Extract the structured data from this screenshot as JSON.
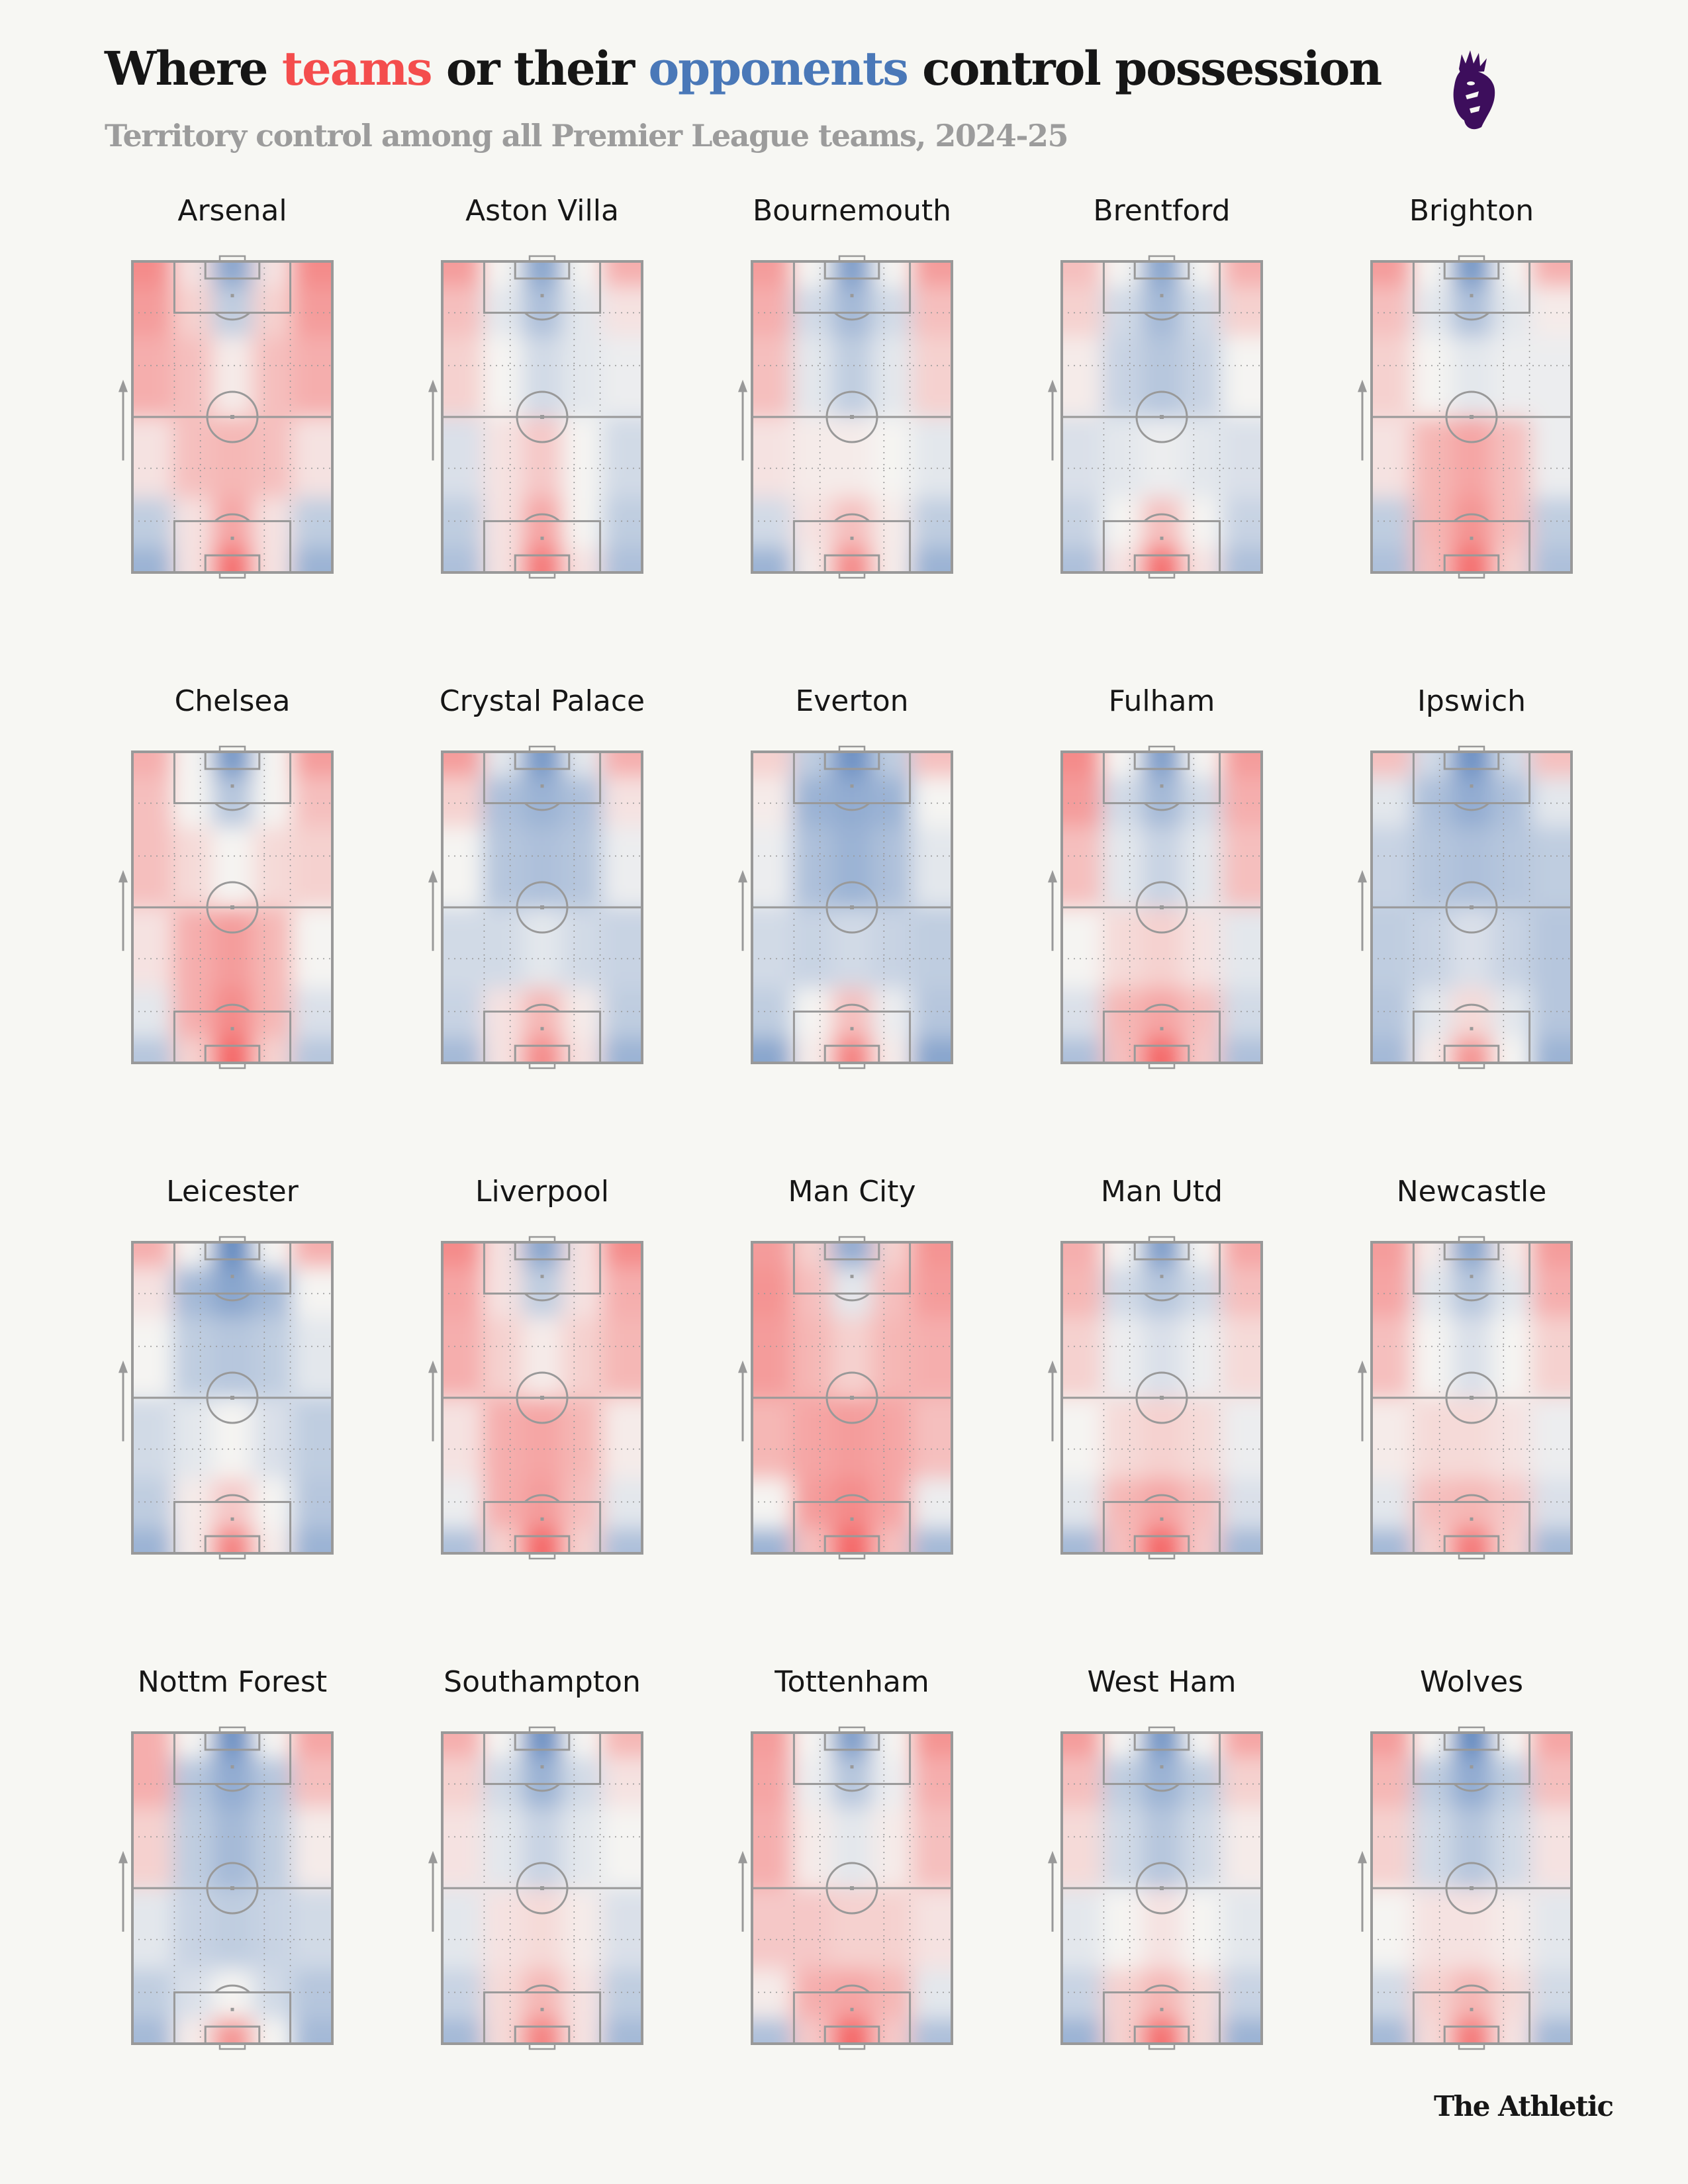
{
  "title": {
    "part1": "Where ",
    "teams": "teams",
    "part2": " or their ",
    "opponents": "opponents",
    "part3": " control possession"
  },
  "subtitle": "Territory control among all Premier League teams, 2024-25",
  "footer": "The Athletic",
  "logo": {
    "icon": "premier-league-lion-logo",
    "color": "#3d0e5c"
  },
  "colors": {
    "team": "#f44d4d",
    "opponent": "#4a78b8",
    "neutral": "#f5f4f2",
    "lines": "#999999"
  },
  "chart_data": {
    "type": "heatmap",
    "description_scale": "positive = team controls (red), negative = opponents control (blue)",
    "value_range": [
      -1,
      1
    ],
    "grid_columns": [
      "left wing",
      "left half-space",
      "centre",
      "right half-space",
      "right wing"
    ],
    "grid_rows": [
      "opponent six-yard area",
      "opponent penalty area",
      "attacking half",
      "defensive half",
      "own penalty-area approach",
      "own six-yard area"
    ],
    "attack_direction": "up",
    "teams": [
      {
        "name": "Arsenal",
        "grid": [
          [
            0.6,
            0.1,
            -0.6,
            0.1,
            0.6
          ],
          [
            0.5,
            0.2,
            -0.3,
            0.2,
            0.5
          ],
          [
            0.4,
            0.3,
            0.05,
            0.3,
            0.4
          ],
          [
            0.1,
            0.3,
            0.35,
            0.3,
            0.1
          ],
          [
            -0.3,
            0.1,
            0.45,
            0.1,
            -0.3
          ],
          [
            -0.5,
            0.1,
            0.75,
            0.1,
            -0.5
          ]
        ]
      },
      {
        "name": "Aston Villa",
        "grid": [
          [
            0.5,
            0,
            -0.6,
            0,
            0.4
          ],
          [
            0.3,
            -0.1,
            -0.4,
            -0.1,
            0.1
          ],
          [
            0.2,
            0,
            -0.2,
            -0.1,
            -0.05
          ],
          [
            -0.15,
            0.1,
            0.25,
            0,
            -0.2
          ],
          [
            -0.3,
            0.1,
            0.45,
            0,
            -0.3
          ],
          [
            -0.4,
            0.1,
            0.7,
            0.1,
            -0.4
          ]
        ]
      },
      {
        "name": "Bournemouth",
        "grid": [
          [
            0.5,
            0,
            -0.65,
            0,
            0.5
          ],
          [
            0.4,
            -0.2,
            -0.45,
            -0.2,
            0.3
          ],
          [
            0.3,
            -0.1,
            -0.3,
            -0.1,
            0.2
          ],
          [
            0.1,
            0.05,
            0.05,
            0,
            -0.1
          ],
          [
            -0.2,
            0.1,
            0.3,
            0.05,
            -0.3
          ],
          [
            -0.5,
            0.05,
            0.6,
            0.05,
            -0.5
          ]
        ]
      },
      {
        "name": "Brentford",
        "grid": [
          [
            0.3,
            0,
            -0.6,
            0,
            0.4
          ],
          [
            0.2,
            -0.2,
            -0.45,
            -0.2,
            0.2
          ],
          [
            0.05,
            -0.25,
            -0.35,
            -0.25,
            0
          ],
          [
            -0.15,
            -0.1,
            -0.05,
            -0.1,
            -0.15
          ],
          [
            -0.25,
            0,
            0.3,
            0,
            -0.25
          ],
          [
            -0.4,
            0.1,
            0.75,
            0.1,
            -0.4
          ]
        ]
      },
      {
        "name": "Brighton",
        "grid": [
          [
            0.5,
            0,
            -0.7,
            0,
            0.4
          ],
          [
            0.3,
            -0.1,
            -0.4,
            -0.1,
            0.05
          ],
          [
            0.2,
            0,
            -0.1,
            -0.05,
            -0.05
          ],
          [
            0.1,
            0.35,
            0.45,
            0.3,
            -0.05
          ],
          [
            -0.3,
            0.35,
            0.55,
            0.3,
            -0.3
          ],
          [
            -0.4,
            0.3,
            0.75,
            0.2,
            -0.4
          ]
        ]
      },
      {
        "name": "Chelsea",
        "grid": [
          [
            0.4,
            0,
            -0.7,
            0,
            0.5
          ],
          [
            0.3,
            0,
            -0.35,
            0,
            0.3
          ],
          [
            0.3,
            0.15,
            0,
            0.15,
            0.2
          ],
          [
            0.1,
            0.4,
            0.5,
            0.35,
            0
          ],
          [
            -0.1,
            0.4,
            0.6,
            0.35,
            -0.15
          ],
          [
            -0.35,
            0.2,
            0.8,
            0.2,
            -0.35
          ]
        ]
      },
      {
        "name": "Crystal Palace",
        "grid": [
          [
            0.5,
            -0.1,
            -0.7,
            -0.1,
            0.4
          ],
          [
            0.2,
            -0.4,
            -0.5,
            -0.4,
            0.1
          ],
          [
            0,
            -0.35,
            -0.4,
            -0.35,
            -0.05
          ],
          [
            -0.2,
            -0.2,
            -0.1,
            -0.2,
            -0.25
          ],
          [
            -0.25,
            0.1,
            0.35,
            0.05,
            -0.3
          ],
          [
            -0.45,
            0.1,
            0.6,
            0.1,
            -0.5
          ]
        ]
      },
      {
        "name": "Everton",
        "grid": [
          [
            0.2,
            -0.3,
            -0.75,
            -0.3,
            0.3
          ],
          [
            0.05,
            -0.5,
            -0.55,
            -0.5,
            0
          ],
          [
            -0.05,
            -0.4,
            -0.5,
            -0.4,
            -0.1
          ],
          [
            -0.2,
            -0.25,
            -0.2,
            -0.25,
            -0.3
          ],
          [
            -0.3,
            0,
            0.3,
            -0.05,
            -0.35
          ],
          [
            -0.6,
            0.05,
            0.65,
            0.05,
            -0.6
          ]
        ]
      },
      {
        "name": "Fulham",
        "grid": [
          [
            0.6,
            0,
            -0.65,
            0,
            0.5
          ],
          [
            0.5,
            -0.2,
            -0.45,
            -0.2,
            0.4
          ],
          [
            0.3,
            -0.1,
            -0.25,
            -0.1,
            0.3
          ],
          [
            0,
            0.15,
            0.2,
            0.1,
            -0.1
          ],
          [
            -0.15,
            0.35,
            0.45,
            0.3,
            -0.2
          ],
          [
            -0.4,
            0.3,
            0.8,
            0.25,
            -0.4
          ]
        ]
      },
      {
        "name": "Ipswich",
        "grid": [
          [
            0.3,
            -0.2,
            -0.75,
            -0.2,
            0.3
          ],
          [
            -0.1,
            -0.4,
            -0.55,
            -0.4,
            -0.1
          ],
          [
            -0.25,
            -0.35,
            -0.4,
            -0.35,
            -0.3
          ],
          [
            -0.3,
            -0.25,
            -0.15,
            -0.25,
            -0.35
          ],
          [
            -0.35,
            -0.1,
            0.15,
            -0.1,
            -0.35
          ],
          [
            -0.45,
            0.05,
            0.55,
            0,
            -0.5
          ]
        ]
      },
      {
        "name": "Leicester",
        "grid": [
          [
            0.4,
            0,
            -0.8,
            0,
            0.4
          ],
          [
            0.1,
            -0.45,
            -0.6,
            -0.45,
            0
          ],
          [
            0,
            -0.3,
            -0.35,
            -0.3,
            -0.1
          ],
          [
            -0.2,
            -0.1,
            0,
            -0.15,
            -0.3
          ],
          [
            -0.3,
            0.05,
            0.25,
            0,
            -0.35
          ],
          [
            -0.5,
            0.05,
            0.65,
            0.05,
            -0.5
          ]
        ]
      },
      {
        "name": "Liverpool",
        "grid": [
          [
            0.6,
            0.1,
            -0.6,
            0.1,
            0.6
          ],
          [
            0.45,
            0.1,
            -0.3,
            0.1,
            0.4
          ],
          [
            0.4,
            0.2,
            0.05,
            0.2,
            0.35
          ],
          [
            0.1,
            0.4,
            0.45,
            0.35,
            0.05
          ],
          [
            -0.05,
            0.4,
            0.5,
            0.3,
            -0.1
          ],
          [
            -0.4,
            0.2,
            0.8,
            0.2,
            -0.4
          ]
        ]
      },
      {
        "name": "Man City",
        "grid": [
          [
            0.5,
            0.2,
            -0.55,
            0.2,
            0.55
          ],
          [
            0.55,
            0.3,
            -0.1,
            0.3,
            0.5
          ],
          [
            0.5,
            0.35,
            0.2,
            0.35,
            0.4
          ],
          [
            0.35,
            0.45,
            0.5,
            0.45,
            0.3
          ],
          [
            0,
            0.5,
            0.6,
            0.45,
            -0.05
          ],
          [
            -0.5,
            0.3,
            0.8,
            0.3,
            -0.45
          ]
        ]
      },
      {
        "name": "Man Utd",
        "grid": [
          [
            0.4,
            0,
            -0.65,
            0,
            0.45
          ],
          [
            0.35,
            -0.2,
            -0.35,
            -0.2,
            0.3
          ],
          [
            0.2,
            -0.05,
            -0.15,
            -0.05,
            0.15
          ],
          [
            0,
            0.15,
            0.2,
            0.15,
            -0.05
          ],
          [
            -0.1,
            0.35,
            0.45,
            0.3,
            -0.15
          ],
          [
            -0.45,
            0.3,
            0.8,
            0.25,
            -0.45
          ]
        ]
      },
      {
        "name": "Newcastle",
        "grid": [
          [
            0.5,
            0.05,
            -0.6,
            0.05,
            0.5
          ],
          [
            0.45,
            -0.1,
            -0.35,
            -0.1,
            0.4
          ],
          [
            0.3,
            0,
            -0.15,
            0,
            0.2
          ],
          [
            0.05,
            0.15,
            0.15,
            0.1,
            -0.05
          ],
          [
            -0.1,
            0.3,
            0.35,
            0.25,
            -0.15
          ],
          [
            -0.45,
            0.2,
            0.7,
            0.2,
            -0.45
          ]
        ]
      },
      {
        "name": "Nottm Forest",
        "grid": [
          [
            0.4,
            0,
            -0.75,
            0,
            0.45
          ],
          [
            0.4,
            -0.35,
            -0.55,
            -0.35,
            0.3
          ],
          [
            0.2,
            -0.3,
            -0.45,
            -0.3,
            0.05
          ],
          [
            -0.1,
            -0.25,
            -0.3,
            -0.25,
            -0.2
          ],
          [
            -0.3,
            -0.15,
            0,
            -0.2,
            -0.35
          ],
          [
            -0.45,
            0.05,
            0.55,
            0,
            -0.45
          ]
        ]
      },
      {
        "name": "Southampton",
        "grid": [
          [
            0.4,
            0,
            -0.75,
            0,
            0.35
          ],
          [
            0.2,
            -0.2,
            -0.5,
            -0.2,
            0.1
          ],
          [
            0.1,
            -0.1,
            -0.25,
            -0.1,
            0
          ],
          [
            -0.1,
            0.1,
            0.15,
            0.05,
            -0.15
          ],
          [
            -0.25,
            0.15,
            0.35,
            0.1,
            -0.3
          ],
          [
            -0.45,
            0.15,
            0.65,
            0.1,
            -0.45
          ]
        ]
      },
      {
        "name": "Tottenham",
        "grid": [
          [
            0.5,
            0,
            -0.65,
            0,
            0.55
          ],
          [
            0.45,
            -0.05,
            -0.35,
            -0.05,
            0.4
          ],
          [
            0.4,
            0.05,
            -0.1,
            0.05,
            0.3
          ],
          [
            0.25,
            0.25,
            0.2,
            0.2,
            0.1
          ],
          [
            0.05,
            0.4,
            0.45,
            0.35,
            -0.1
          ],
          [
            -0.4,
            0.25,
            0.8,
            0.25,
            -0.4
          ]
        ]
      },
      {
        "name": "West Ham",
        "grid": [
          [
            0.5,
            0,
            -0.7,
            0,
            0.45
          ],
          [
            0.3,
            -0.3,
            -0.5,
            -0.3,
            0.2
          ],
          [
            0.15,
            -0.2,
            -0.35,
            -0.2,
            0.05
          ],
          [
            -0.1,
            0,
            0.1,
            0,
            -0.1
          ],
          [
            -0.25,
            0.2,
            0.35,
            0.15,
            -0.25
          ],
          [
            -0.5,
            0.2,
            0.75,
            0.15,
            -0.5
          ]
        ]
      },
      {
        "name": "Wolves",
        "grid": [
          [
            0.5,
            0,
            -0.8,
            0,
            0.45
          ],
          [
            0.35,
            -0.3,
            -0.55,
            -0.3,
            0.3
          ],
          [
            0.2,
            -0.2,
            -0.35,
            -0.2,
            0.1
          ],
          [
            0,
            0.1,
            0.1,
            0.05,
            -0.1
          ],
          [
            -0.2,
            0.2,
            0.35,
            0.15,
            -0.2
          ],
          [
            -0.45,
            0.15,
            0.7,
            0.1,
            -0.45
          ]
        ]
      }
    ]
  }
}
